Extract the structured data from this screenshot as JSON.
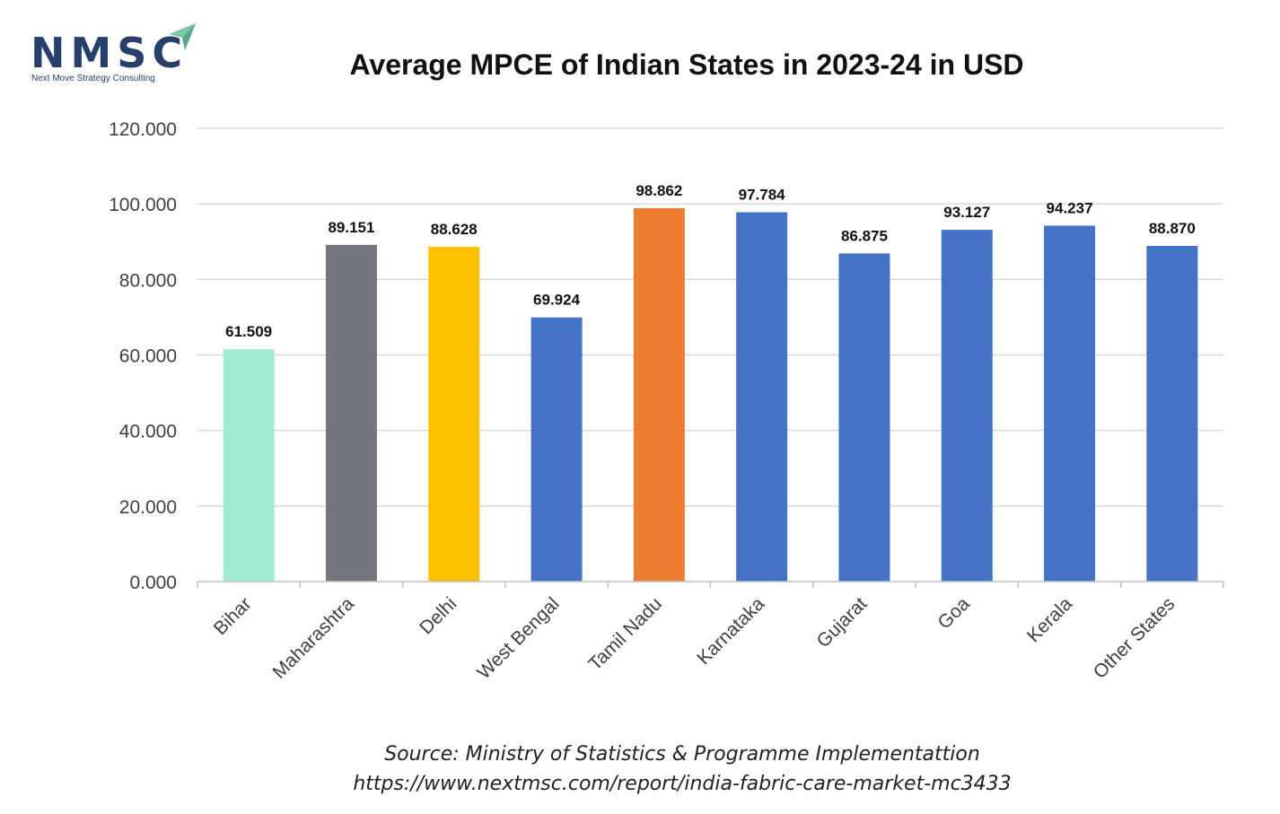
{
  "logo": {
    "text": "NMSC",
    "tagline": "Next Move Strategy Consulting",
    "text_color": "#27406b",
    "mark_color": "#7cc7a3"
  },
  "chart_data": {
    "type": "bar",
    "title": "Average MPCE of Indian States in 2023-24 in USD",
    "xlabel": "",
    "ylabel": "",
    "categories": [
      "Bihar",
      "Maharashtra",
      "Delhi",
      "West Bengal",
      "Tamil Nadu",
      "Karnataka",
      "Gujarat",
      "Goa",
      "Kerala",
      "Other States"
    ],
    "values": [
      61.509,
      89.151,
      88.628,
      69.924,
      98.862,
      97.784,
      86.875,
      93.127,
      94.237,
      88.87
    ],
    "value_labels": [
      "61.509",
      "89.151",
      "88.628",
      "69.924",
      "98.862",
      "97.784",
      "86.875",
      "93.127",
      "94.237",
      "88.870"
    ],
    "bar_colors": [
      "#a1ebd2",
      "#72767d",
      "#ffc000",
      "#4472c4",
      "#ed7d31",
      "#4472c4",
      "#4472c4",
      "#4472c4",
      "#4472c4",
      "#4472c4"
    ],
    "ylim": [
      0,
      120
    ],
    "yticks": [
      0,
      20,
      40,
      60,
      80,
      100,
      120
    ],
    "ytick_labels": [
      "0.000",
      "20.000",
      "40.000",
      "60.000",
      "80.000",
      "100.000",
      "120.000"
    ],
    "grid": true,
    "legend": "none"
  },
  "source": {
    "line1": "Source: Ministry of Statistics & Programme Implementattion",
    "line2": "https://www.nextmsc.com/report/india-fabric-care-market-mc3433"
  }
}
